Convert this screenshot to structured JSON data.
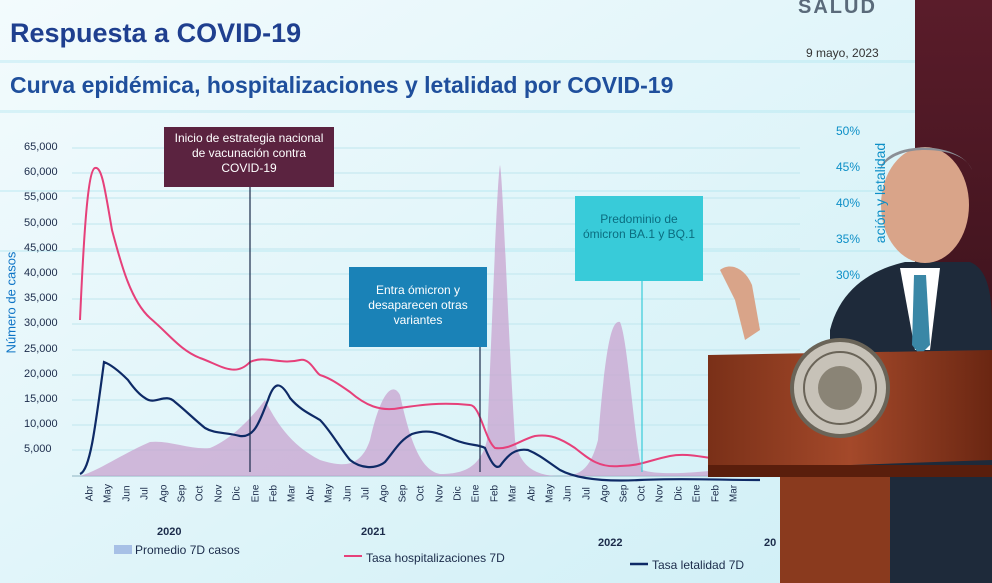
{
  "slide": {
    "title": "Respuesta a COVID-19",
    "date": "9 mayo, 2023",
    "logo": "SALUD",
    "chart_title": "Curva epidémica, hospitalizaciones y letalidad por COVID-19"
  },
  "callouts": [
    "Inicio de estrategia nacional de vacunación contra COVID-19",
    "Entra ómicron y desaparecen otras variantes",
    "Predominio de ómicron BA.1 y BQ.1"
  ],
  "axes": {
    "y_label": "Número de casos",
    "y2_label": "ación y letalidad",
    "y_ticks": [
      "65,000",
      "60,000",
      "55,000",
      "50,000",
      "45,000",
      "40,000",
      "35,000",
      "30,000",
      "25,000",
      "20,000",
      "15,000",
      "10,000",
      "5,000"
    ],
    "y2_ticks": [
      "50%",
      "45%",
      "40%",
      "35%",
      "30%"
    ],
    "x_ticks": [
      "Abr",
      "May",
      "Jun",
      "Jul",
      "Ago",
      "Sep",
      "Oct",
      "Nov",
      "Dic",
      "Ene",
      "Feb",
      "Mar",
      "Abr",
      "May",
      "Jun",
      "Jul",
      "Ago",
      "Sep",
      "Oct",
      "Nov",
      "Dic",
      "Ene",
      "Feb",
      "Mar",
      "Abr",
      "May",
      "Jun",
      "Jul",
      "Ago",
      "Sep",
      "Oct",
      "Nov",
      "Dic",
      "Ene",
      "Feb",
      "Mar"
    ],
    "years": [
      "2020",
      "2021",
      "2022",
      "20"
    ]
  },
  "legend": {
    "cases": "Promedio 7D casos",
    "hosp": "Tasa hospitalizaciones 7D",
    "leth": "Tasa letalidad 7D"
  },
  "colors": {
    "title": "#1f3f8f",
    "cases_area": "#c8a3cf",
    "hosp_line": "#e6407a",
    "leth_line": "#0e2a66",
    "callout_dark": "#5b2340",
    "callout_blue": "#1a82b7",
    "callout_cyan": "#38cbd9"
  },
  "scene": {
    "photo_content": "person-speaking-at-podium",
    "seal": "mexican-coat-of-arms"
  }
}
